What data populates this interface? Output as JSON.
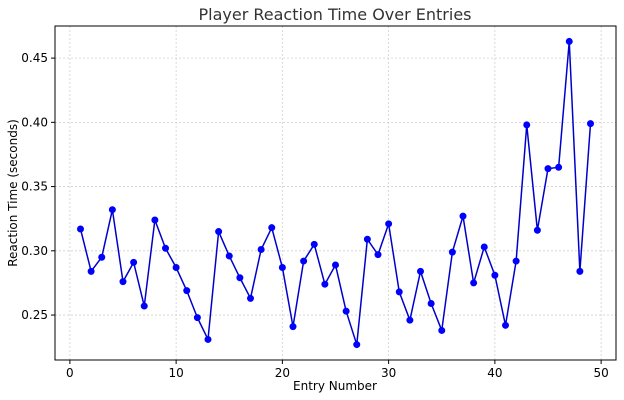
{
  "chart_data": {
    "type": "line",
    "title": "Player Reaction Time Over Entries",
    "xlabel": "Entry Number",
    "ylabel": "Reaction Time (seconds)",
    "xlim": [
      -1.4,
      51.4
    ],
    "ylim": [
      0.215,
      0.475
    ],
    "xticks": [
      0,
      10,
      20,
      30,
      40,
      50
    ],
    "xtick_labels": [
      "0",
      "10",
      "20",
      "30",
      "40",
      "50"
    ],
    "yticks": [
      0.25,
      0.3,
      0.35,
      0.4,
      0.45
    ],
    "ytick_labels": [
      "0.25",
      "0.30",
      "0.35",
      "0.40",
      "0.45"
    ],
    "grid": true,
    "colors": {
      "line": "#0000cc",
      "marker": "#0000ff",
      "grid": "#d0d0d0"
    },
    "series": [
      {
        "marker": "circle",
        "x": [
          1,
          2,
          3,
          4,
          5,
          6,
          7,
          8,
          9,
          10,
          11,
          12,
          13,
          14,
          15,
          16,
          17,
          18,
          19,
          20,
          21,
          22,
          23,
          24,
          25,
          26,
          27,
          28,
          29,
          30,
          31,
          32,
          33,
          34,
          35,
          36,
          37,
          38,
          39,
          40,
          41,
          42,
          43,
          44,
          45,
          46,
          47,
          48,
          49
        ],
        "values": [
          0.317,
          0.284,
          0.295,
          0.332,
          0.276,
          0.291,
          0.257,
          0.324,
          0.302,
          0.287,
          0.269,
          0.248,
          0.231,
          0.315,
          0.296,
          0.279,
          0.263,
          0.301,
          0.318,
          0.287,
          0.241,
          0.292,
          0.305,
          0.274,
          0.289,
          0.253,
          0.227,
          0.309,
          0.297,
          0.321,
          0.268,
          0.246,
          0.284,
          0.259,
          0.238,
          0.299,
          0.327,
          0.275,
          0.303,
          0.281,
          0.242,
          0.292,
          0.398,
          0.316,
          0.364,
          0.365,
          0.463,
          0.284,
          0.399
        ]
      }
    ]
  }
}
